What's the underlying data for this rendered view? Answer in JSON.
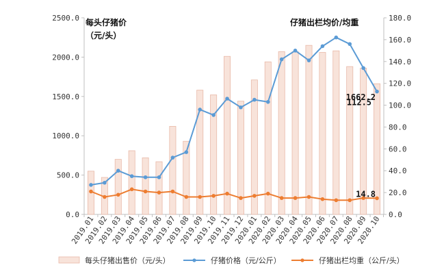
{
  "chart_data": {
    "type": "bar+line",
    "categories": [
      "2019.01",
      "2019.02",
      "2019.03",
      "2019.04",
      "2019.05",
      "2019.06",
      "2019.07",
      "2019.08",
      "2019.09",
      "2019.10",
      "2019.11",
      "2019.12",
      "2020.01",
      "2020.02",
      "2020.03",
      "2020.04",
      "2020.05",
      "2020.06",
      "2020.07",
      "2020.08",
      "2020.09",
      "2020.10"
    ],
    "left_axis": {
      "min": 0,
      "max": 2500,
      "step": 500,
      "ticks": [
        "0.0",
        "500.0",
        "1000.0",
        "1500.0",
        "2000.0",
        "2500.0"
      ]
    },
    "right_axis": {
      "min": 0,
      "max": 180,
      "step": 20,
      "ticks": [
        "0.0",
        "20.0",
        "40.0",
        "60.0",
        "80.0",
        "100.0",
        "120.0",
        "140.0",
        "160.0",
        "180.0"
      ]
    },
    "left_annotation": [
      "每头仔猪价",
      "（元/头）"
    ],
    "right_annotation": "仔猪出栏均价/均重",
    "series": [
      {
        "name": "每头仔猪出售价（元/头）",
        "kind": "bar",
        "axis": "left",
        "color": "#F8E3DA",
        "stroke": "#E8B9A8",
        "values": [
          550,
          470,
          700,
          810,
          720,
          670,
          1120,
          930,
          1580,
          1520,
          2010,
          1440,
          1710,
          1940,
          2070,
          2070,
          2150,
          2060,
          2080,
          1880,
          1860,
          1662.2
        ]
      },
      {
        "name": "仔猪价格（元/公斤）",
        "kind": "line",
        "axis": "right",
        "color": "#5B9BD5",
        "values": [
          27,
          29,
          40,
          35,
          34,
          34,
          52,
          57,
          96,
          91,
          106,
          98,
          105,
          103,
          142,
          150,
          141,
          154,
          162,
          156,
          134,
          112.5
        ]
      },
      {
        "name": "仔猪出栏均重（公斤/头）",
        "kind": "line",
        "axis": "right",
        "color": "#ED7D31",
        "values": [
          21,
          16,
          18,
          23,
          21,
          20,
          21,
          16,
          16,
          17,
          19,
          15,
          17,
          19,
          15,
          15,
          16,
          14,
          13,
          13,
          15,
          14.8
        ]
      }
    ],
    "data_labels": [
      {
        "series": 1,
        "index": 21,
        "text": "112.5"
      },
      {
        "series": 0,
        "index": 21,
        "text": "1662.2"
      },
      {
        "series": 2,
        "index": 21,
        "text": "14.8"
      }
    ]
  }
}
